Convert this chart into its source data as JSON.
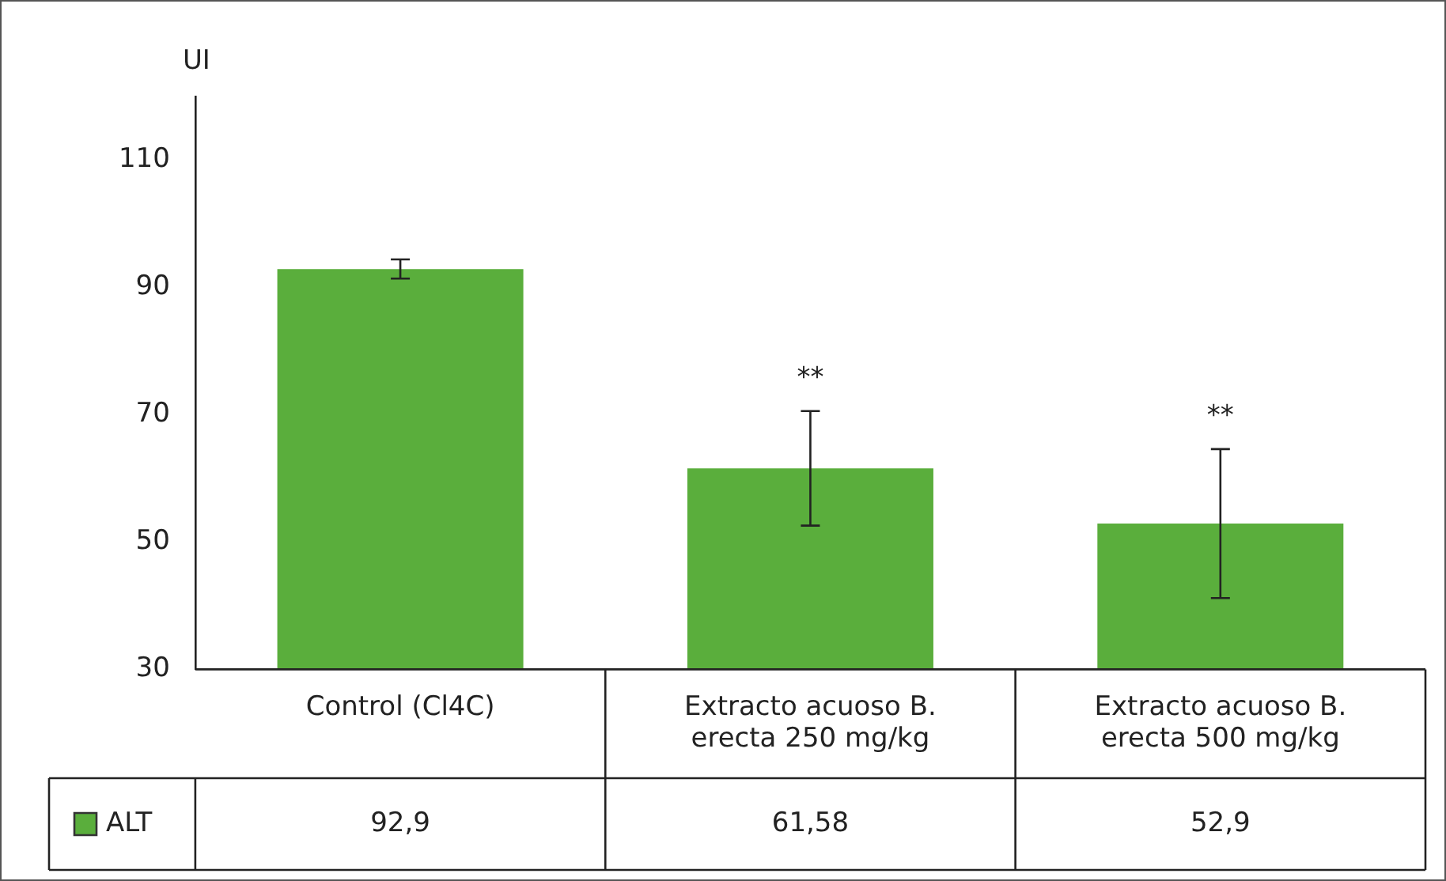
{
  "chart_data": {
    "type": "bar",
    "ylabel": "UI",
    "categories": [
      "Control (Cl4C)",
      "Extracto acuoso B. erecta 250 mg/kg",
      "Extracto acuoso B. erecta 500 mg/kg"
    ],
    "series": [
      {
        "name": "ALT",
        "color": "#5aae3c",
        "values": [
          92.9,
          61.58,
          52.9
        ],
        "value_labels": [
          "92,9",
          "61,58",
          "52,9"
        ],
        "errors": [
          1.5,
          9,
          11.7
        ]
      }
    ],
    "ylim": [
      30,
      120
    ],
    "yticks": [
      30,
      50,
      70,
      90,
      110
    ],
    "grid": false,
    "legend": "bottom",
    "annotations": [
      "**",
      "**"
    ]
  }
}
